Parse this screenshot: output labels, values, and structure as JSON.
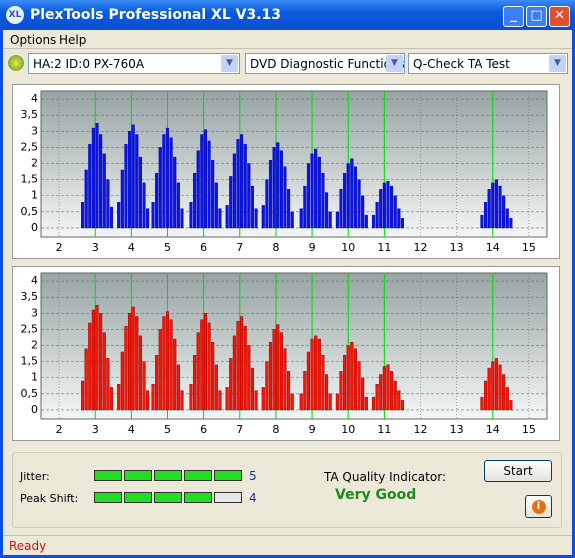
{
  "window": {
    "title": "PlexTools Professional XL V3.13"
  },
  "menu": [
    "Options",
    "Help"
  ],
  "toolbar": {
    "drive": "HA:2 ID:0  PX-760A",
    "function": "DVD Diagnostic Functions",
    "test": "Q-Check TA Test"
  },
  "charts": [
    {
      "type": "bar",
      "color": "#0a14e6",
      "xlim": [
        1.5,
        15.5
      ],
      "ylim": [
        -0.28,
        4.25
      ],
      "xticks": [
        2,
        3,
        4,
        5,
        6,
        7,
        8,
        9,
        10,
        11,
        12,
        13,
        14,
        15
      ],
      "yticks": [
        0,
        {
          "value": 0.5,
          "label": "0,5"
        },
        1,
        {
          "value": 1.5,
          "label": "1,5"
        },
        2,
        {
          "value": 2.5,
          "label": "2,5"
        },
        3,
        {
          "value": 3.5,
          "label": "3,5"
        },
        4
      ],
      "markers": [
        3,
        4,
        5,
        6,
        7,
        8,
        9,
        10,
        11,
        14
      ],
      "x": [
        2.65,
        2.75,
        2.85,
        2.95,
        3.05,
        3.15,
        3.25,
        3.35,
        3.45,
        3.65,
        3.75,
        3.85,
        3.95,
        4.05,
        4.15,
        4.25,
        4.35,
        4.45,
        4.6,
        4.7,
        4.8,
        4.9,
        5,
        5.1,
        5.2,
        5.3,
        5.4,
        5.65,
        5.75,
        5.85,
        5.95,
        6.05,
        6.15,
        6.25,
        6.35,
        6.45,
        6.65,
        6.75,
        6.85,
        6.95,
        7.05,
        7.15,
        7.25,
        7.35,
        7.45,
        7.65,
        7.75,
        7.85,
        7.95,
        8.05,
        8.15,
        8.25,
        8.35,
        8.45,
        8.7,
        8.8,
        8.9,
        9,
        9.1,
        9.2,
        9.3,
        9.4,
        9.5,
        9.7,
        9.8,
        9.9,
        10,
        10.1,
        10.2,
        10.3,
        10.4,
        10.5,
        10.7,
        10.8,
        10.9,
        11,
        11.1,
        11.2,
        11.3,
        11.4,
        11.5,
        13.7,
        13.8,
        13.9,
        14,
        14.1,
        14.2,
        14.3,
        14.4,
        14.5
      ],
      "values": [
        0.8,
        1.8,
        2.6,
        3.1,
        3.25,
        2.9,
        2.3,
        1.5,
        0.65,
        0.8,
        1.8,
        2.6,
        3,
        3.2,
        2.9,
        2.2,
        1.4,
        0.6,
        0.8,
        1.7,
        2.5,
        2.9,
        3.1,
        2.8,
        2.2,
        1.4,
        0.6,
        0.8,
        1.7,
        2.4,
        2.9,
        3.05,
        2.7,
        2.1,
        1.4,
        0.6,
        0.7,
        1.6,
        2.3,
        2.75,
        2.9,
        2.6,
        2,
        1.3,
        0.6,
        0.7,
        1.5,
        2.1,
        2.5,
        2.65,
        2.4,
        1.9,
        1.2,
        0.5,
        0.6,
        1.3,
        2,
        2.3,
        2.45,
        2.2,
        1.7,
        1.1,
        0.5,
        0.5,
        1.2,
        1.7,
        2,
        2.15,
        1.9,
        1.5,
        1,
        0.4,
        0.4,
        0.8,
        1.2,
        1.4,
        1.45,
        1.3,
        1,
        0.6,
        0.3,
        0.4,
        0.8,
        1.2,
        1.4,
        1.5,
        1.3,
        1,
        0.6,
        0.3
      ]
    },
    {
      "type": "bar",
      "color": "#ff1000",
      "xlim": [
        1.5,
        15.5
      ],
      "ylim": [
        -0.28,
        4.25
      ],
      "xticks": [
        2,
        3,
        4,
        5,
        6,
        7,
        8,
        9,
        10,
        11,
        12,
        13,
        14,
        15
      ],
      "yticks": [
        0,
        {
          "value": 0.5,
          "label": "0,5"
        },
        1,
        {
          "value": 1.5,
          "label": "1,5"
        },
        2,
        {
          "value": 2.5,
          "label": "2,5"
        },
        3,
        {
          "value": 3.5,
          "label": "3,5"
        },
        4
      ],
      "markers": [
        3,
        4,
        5,
        6,
        7,
        8,
        9,
        10,
        11,
        14
      ],
      "x": [
        2.65,
        2.75,
        2.85,
        2.95,
        3.05,
        3.15,
        3.25,
        3.35,
        3.45,
        3.65,
        3.75,
        3.85,
        3.95,
        4.05,
        4.15,
        4.25,
        4.35,
        4.45,
        4.6,
        4.7,
        4.8,
        4.9,
        5,
        5.1,
        5.2,
        5.3,
        5.4,
        5.65,
        5.75,
        5.85,
        5.95,
        6.05,
        6.15,
        6.25,
        6.35,
        6.45,
        6.65,
        6.75,
        6.85,
        6.95,
        7.05,
        7.15,
        7.25,
        7.35,
        7.45,
        7.65,
        7.75,
        7.85,
        7.95,
        8.05,
        8.15,
        8.25,
        8.35,
        8.45,
        8.7,
        8.8,
        8.9,
        9,
        9.1,
        9.2,
        9.3,
        9.4,
        9.5,
        9.7,
        9.8,
        9.9,
        10,
        10.1,
        10.2,
        10.3,
        10.4,
        10.5,
        10.7,
        10.8,
        10.9,
        11,
        11.1,
        11.2,
        11.3,
        11.4,
        11.5,
        13.7,
        13.8,
        13.9,
        14,
        14.1,
        14.2,
        14.3,
        14.4,
        14.5
      ],
      "values": [
        0.9,
        1.9,
        2.7,
        3.1,
        3.25,
        3,
        2.4,
        1.6,
        0.7,
        0.8,
        1.8,
        2.6,
        3,
        3.2,
        2.9,
        2.3,
        1.5,
        0.6,
        0.8,
        1.7,
        2.5,
        2.9,
        3.05,
        2.8,
        2.2,
        1.4,
        0.6,
        0.8,
        1.7,
        2.4,
        2.8,
        3,
        2.7,
        2.1,
        1.4,
        0.6,
        0.7,
        1.6,
        2.3,
        2.75,
        2.9,
        2.6,
        2,
        1.3,
        0.6,
        0.7,
        1.5,
        2.1,
        2.5,
        2.65,
        2.4,
        1.9,
        1.2,
        0.5,
        0.5,
        1.2,
        1.8,
        2.2,
        2.3,
        2.2,
        1.7,
        1.1,
        0.5,
        0.5,
        1.2,
        1.7,
        2,
        2.1,
        1.9,
        1.5,
        1,
        0.4,
        0.4,
        0.8,
        1.1,
        1.35,
        1.4,
        1.2,
        0.9,
        0.6,
        0.3,
        0.4,
        0.9,
        1.3,
        1.5,
        1.6,
        1.4,
        1.1,
        0.7,
        0.3
      ]
    }
  ],
  "results": {
    "jitter": {
      "label": "Jitter:",
      "value": 5
    },
    "peak_shift": {
      "label": "Peak Shift:",
      "value": 4
    },
    "quality": {
      "label": "TA Quality Indicator:",
      "value": "Very Good"
    }
  },
  "buttons": {
    "start": "Start"
  },
  "status": "Ready"
}
